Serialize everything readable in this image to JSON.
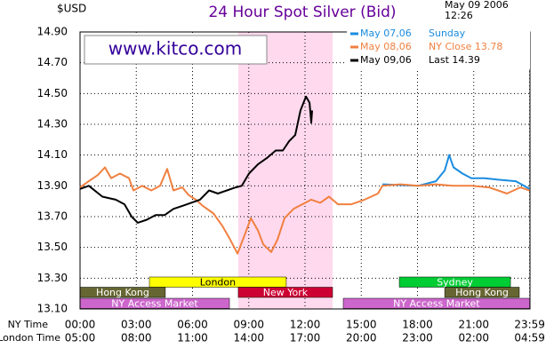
{
  "chart_data": {
    "type": "line",
    "title": "24 Hour Spot Silver (Bid)",
    "y_unit": "$USD",
    "date": "May 09 2006",
    "time": "12:26",
    "watermark": "www.kitco.com",
    "x_label": "NY Time",
    "x2_label": "London Time",
    "xlim": [
      0,
      24
    ],
    "ylim": [
      13.1,
      14.9
    ],
    "grid": true,
    "xticks": [
      {
        "value": 0,
        "label": "00:00"
      },
      {
        "value": 3,
        "label": "03:00"
      },
      {
        "value": 6,
        "label": "06:00"
      },
      {
        "value": 9,
        "label": "09:00"
      },
      {
        "value": 12,
        "label": "12:00"
      },
      {
        "value": 15,
        "label": "15:00"
      },
      {
        "value": 18,
        "label": "18:00"
      },
      {
        "value": 21,
        "label": "21:00"
      },
      {
        "value": 23.983,
        "label": "23:59"
      }
    ],
    "x2ticks": [
      {
        "value": 0,
        "label": "05:00"
      },
      {
        "value": 3,
        "label": "08:00"
      },
      {
        "value": 6,
        "label": "11:00"
      },
      {
        "value": 9,
        "label": "14:00"
      },
      {
        "value": 12,
        "label": "17:00"
      },
      {
        "value": 15,
        "label": "20:00"
      },
      {
        "value": 18,
        "label": "23:00"
      },
      {
        "value": 21,
        "label": "02:00"
      },
      {
        "value": 23.983,
        "label": "04:59"
      }
    ],
    "yticks": [
      {
        "value": 13.1,
        "label": "13.10"
      },
      {
        "value": 13.3,
        "label": "13.30"
      },
      {
        "value": 13.5,
        "label": "13.50"
      },
      {
        "value": 13.7,
        "label": "13.70"
      },
      {
        "value": 13.9,
        "label": "13.90"
      },
      {
        "value": 14.1,
        "label": "14.10"
      },
      {
        "value": 14.3,
        "label": "14.30"
      },
      {
        "value": 14.5,
        "label": "14.50"
      },
      {
        "value": 14.7,
        "label": "14.70"
      },
      {
        "value": 14.9,
        "label": "14.90"
      }
    ],
    "highlight": {
      "start": 8.44,
      "end": 13.47,
      "color": "#ffd9ee"
    },
    "series": [
      {
        "name": "May 07,06",
        "note": "Sunday",
        "color": "#1a8ce0",
        "x": [
          16.13,
          18.03,
          18.98,
          19.45,
          19.69,
          19.92,
          20.4,
          20.87,
          21.58,
          22.3,
          23.24,
          23.983
        ],
        "values": [
          13.91,
          13.9,
          13.93,
          14.0,
          14.1,
          14.02,
          13.98,
          13.95,
          13.95,
          13.94,
          13.93,
          13.88
        ]
      },
      {
        "name": "May 08,06",
        "note": "NY Close 13.78",
        "color": "#f08040",
        "x": [
          0,
          0.47,
          0.95,
          1.33,
          1.66,
          2.13,
          2.61,
          2.85,
          3.32,
          3.8,
          4.27,
          4.65,
          4.98,
          5.46,
          5.79,
          6.17,
          6.55,
          7.12,
          7.59,
          7.97,
          8.4,
          8.78,
          9.11,
          9.49,
          9.77,
          10.2,
          10.53,
          10.91,
          11.39,
          11.86,
          12.33,
          12.81,
          13.28,
          13.76,
          14.47,
          15.18,
          15.89,
          16.13,
          17.08,
          18.03,
          18.98,
          19.92,
          20.87,
          21.82,
          22.77,
          23.48,
          23.983
        ],
        "values": [
          13.89,
          13.93,
          13.97,
          14.02,
          13.95,
          13.98,
          13.95,
          13.87,
          13.9,
          13.87,
          13.9,
          14.01,
          13.87,
          13.89,
          13.84,
          13.81,
          13.77,
          13.72,
          13.64,
          13.56,
          13.46,
          13.58,
          13.69,
          13.61,
          13.52,
          13.47,
          13.55,
          13.69,
          13.75,
          13.78,
          13.81,
          13.79,
          13.83,
          13.78,
          13.78,
          13.81,
          13.85,
          13.9,
          13.91,
          13.9,
          13.91,
          13.9,
          13.9,
          13.89,
          13.85,
          13.89,
          13.87
        ]
      },
      {
        "name": "May 09,06",
        "note": "Last 14.39",
        "color": "#000000",
        "x": [
          0,
          0.47,
          1.19,
          1.9,
          2.37,
          2.75,
          3.08,
          3.56,
          4.03,
          4.51,
          4.98,
          5.46,
          5.93,
          6.4,
          6.88,
          7.35,
          7.83,
          8.3,
          8.63,
          9.01,
          9.49,
          9.96,
          10.44,
          10.82,
          11.15,
          11.48,
          11.76,
          12.05,
          12.24,
          12.33,
          12.38
        ],
        "values": [
          13.88,
          13.9,
          13.83,
          13.81,
          13.78,
          13.7,
          13.66,
          13.68,
          13.71,
          13.71,
          13.75,
          13.77,
          13.79,
          13.81,
          13.87,
          13.85,
          13.87,
          13.89,
          13.9,
          13.98,
          14.04,
          14.08,
          14.13,
          14.13,
          14.19,
          14.23,
          14.39,
          14.48,
          14.44,
          14.31,
          14.39
        ]
      }
    ],
    "sessions": [
      {
        "label": "London",
        "start": 3.7,
        "end": 11.0,
        "row": 0,
        "color": "#ffff00",
        "text_color": "#000000"
      },
      {
        "label": "Sydney",
        "start": 17.03,
        "end": 22.96,
        "row": 0,
        "color": "#00cc33",
        "text_color": "#ffffff"
      },
      {
        "label": "Hong Kong",
        "start": 0,
        "end": 4.55,
        "row": 1,
        "color": "#666633",
        "text_color": "#ffffff"
      },
      {
        "label": "New York",
        "start": 8.44,
        "end": 13.47,
        "row": 1,
        "color": "#cc0033",
        "text_color": "#ffffff"
      },
      {
        "label": "Hong Kong",
        "start": 19.45,
        "end": 23.43,
        "row": 1,
        "color": "#666633",
        "text_color": "#ffffff"
      },
      {
        "label": "NY Access Market",
        "start": 0,
        "end": 7.97,
        "row": 2,
        "color": "#cc66cc",
        "text_color": "#ffffff"
      },
      {
        "label": "NY Access Market",
        "start": 14.04,
        "end": 23.983,
        "row": 2,
        "color": "#cc66cc",
        "text_color": "#ffffff"
      }
    ]
  }
}
